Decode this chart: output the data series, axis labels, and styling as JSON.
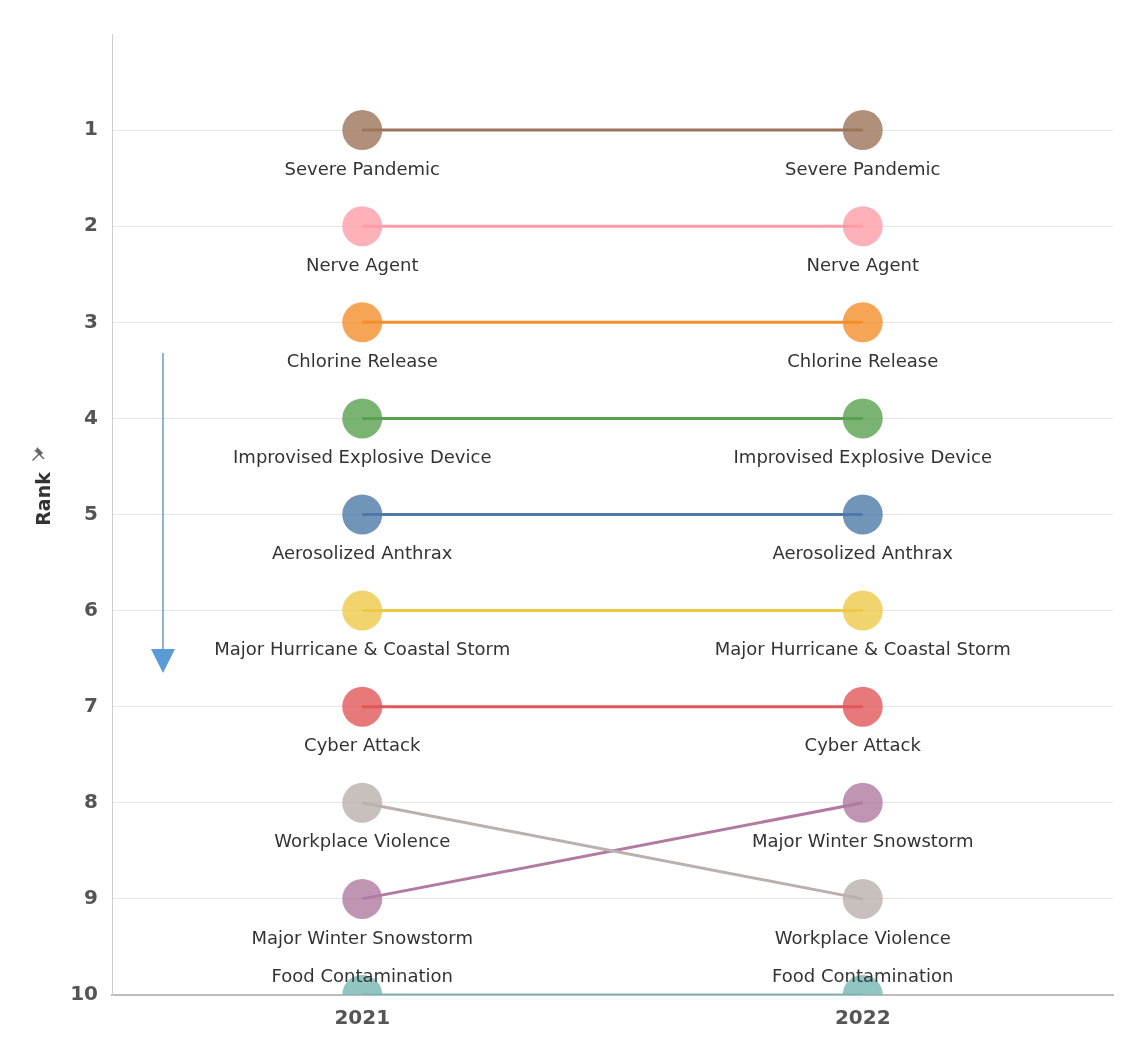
{
  "chart_data": {
    "type": "line",
    "ylabel": "Rank",
    "categories": [
      "2021",
      "2022"
    ],
    "series": [
      {
        "name": "Severe Pandemic",
        "color": "#9c7459",
        "values": [
          1,
          1
        ]
      },
      {
        "name": "Nerve Agent",
        "color": "#ff9da7",
        "values": [
          2,
          2
        ]
      },
      {
        "name": "Chlorine Release",
        "color": "#f28e2b",
        "values": [
          3,
          3
        ]
      },
      {
        "name": "Improvised Explosive Device",
        "color": "#59a14f",
        "values": [
          4,
          4
        ]
      },
      {
        "name": "Aerosolized Anthrax",
        "color": "#4e79a7",
        "values": [
          5,
          5
        ]
      },
      {
        "name": "Major Hurricane & Coastal Storm",
        "color": "#edc948",
        "values": [
          6,
          6
        ]
      },
      {
        "name": "Cyber Attack",
        "color": "#e15759",
        "values": [
          7,
          7
        ]
      },
      {
        "name": "Workplace Violence",
        "color": "#bab0ac",
        "values": [
          8,
          9
        ]
      },
      {
        "name": "Major Winter Snowstorm",
        "color": "#b07aa1",
        "values": [
          9,
          8
        ]
      },
      {
        "name": "Food Contamination",
        "color": "#76b7b2",
        "values": [
          10,
          10
        ]
      }
    ],
    "ylim": [
      10,
      0
    ],
    "yticks": [
      1,
      2,
      3,
      4,
      5,
      6,
      7,
      8,
      9,
      10
    ],
    "grid": "y",
    "legend": false,
    "marker": "circle",
    "line_style": "solid"
  }
}
